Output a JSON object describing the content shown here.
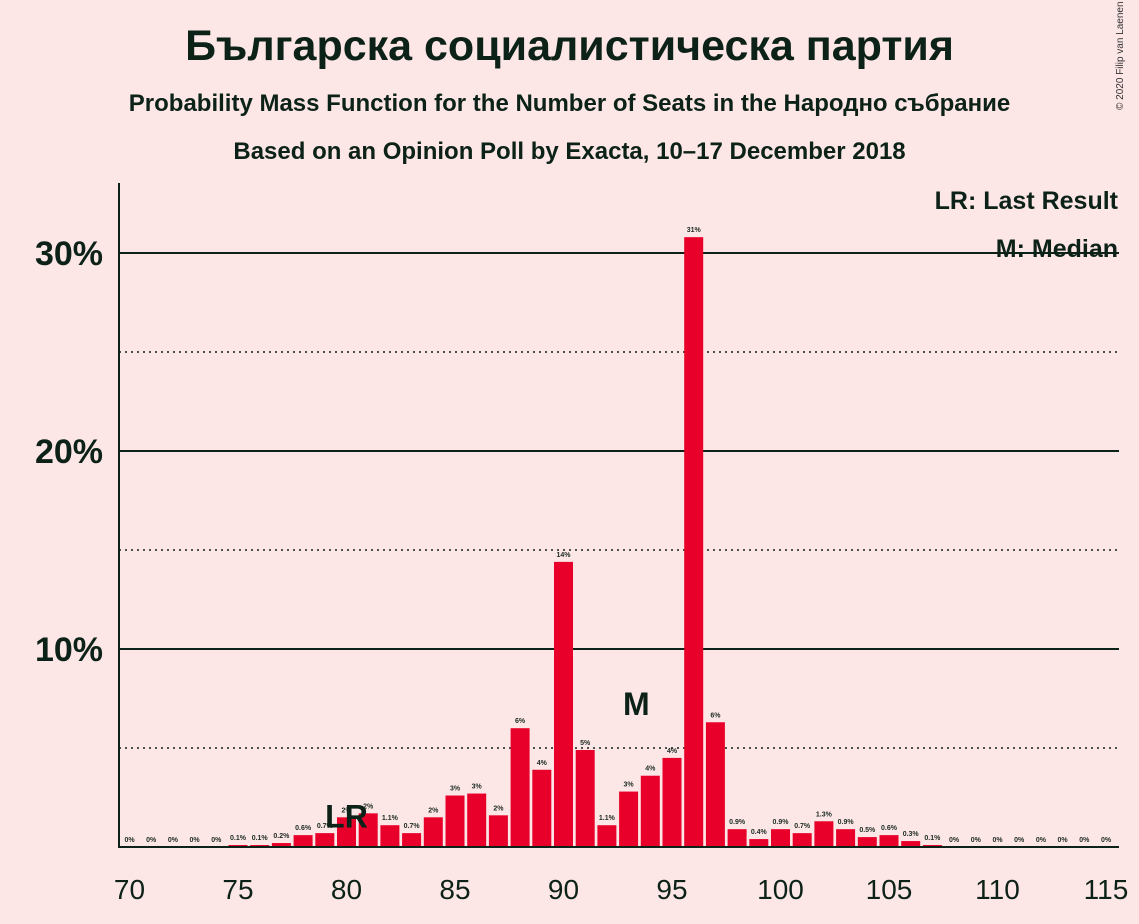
{
  "title": "Българска социалистическа партия",
  "subtitle": "Probability Mass Function for the Number of Seats in the Народно събрание",
  "source_line": "Based on an Opinion Poll by Exacta, 10–17 December 2018",
  "copyright": "© 2020 Filip van Laenen",
  "colors": {
    "bar": "#E8002A",
    "background": "#FDE6E6",
    "text": "#0c2218"
  },
  "chart_data": {
    "type": "bar",
    "xlabel": "",
    "ylabel": "",
    "x": [
      70,
      71,
      72,
      73,
      74,
      75,
      76,
      77,
      78,
      79,
      80,
      81,
      82,
      83,
      84,
      85,
      86,
      87,
      88,
      89,
      90,
      91,
      92,
      93,
      94,
      95,
      96,
      97,
      98,
      99,
      100,
      101,
      102,
      103,
      104,
      105,
      106,
      107,
      108,
      109,
      110,
      111,
      112,
      113,
      114,
      115
    ],
    "values": [
      0,
      0,
      0,
      0,
      0,
      0.1,
      0.1,
      0.2,
      0.6,
      0.7,
      1.5,
      1.7,
      1.1,
      0.7,
      1.5,
      2.6,
      2.7,
      1.6,
      6.0,
      3.9,
      14.4,
      4.9,
      1.1,
      2.8,
      3.6,
      4.5,
      30.8,
      6.3,
      0.9,
      0.4,
      0.9,
      0.7,
      1.3,
      0.9,
      0.5,
      0.6,
      0.3,
      0.1,
      0,
      0,
      0,
      0,
      0,
      0,
      0,
      0
    ],
    "labels": [
      "0%",
      "0%",
      "0%",
      "0%",
      "0%",
      "0.1%",
      "0.1%",
      "0.2%",
      "0.6%",
      "0.7%",
      "2%",
      "2%",
      "1.1%",
      "0.7%",
      "2%",
      "3%",
      "3%",
      "2%",
      "6%",
      "4%",
      "14%",
      "5%",
      "1.1%",
      "3%",
      "4%",
      "4%",
      "31%",
      "6%",
      "0.9%",
      "0.4%",
      "0.9%",
      "0.7%",
      "1.3%",
      "0.9%",
      "0.5%",
      "0.6%",
      "0.3%",
      "0.1%",
      "0%",
      "0%",
      "0%",
      "0%",
      "0%",
      "0%",
      "0%",
      "0%"
    ],
    "ylim": [
      0,
      33.5
    ],
    "yticks": [
      {
        "value": 10,
        "label": "10%"
      },
      {
        "value": 20,
        "label": "20%"
      },
      {
        "value": 30,
        "label": "30%"
      }
    ],
    "minor_gridlines": [
      5,
      15,
      25
    ],
    "xticks": [
      {
        "value": 70,
        "label": "70"
      },
      {
        "value": 75,
        "label": "75"
      },
      {
        "value": 80,
        "label": "80"
      },
      {
        "value": 85,
        "label": "85"
      },
      {
        "value": 90,
        "label": "90"
      },
      {
        "value": 95,
        "label": "95"
      },
      {
        "value": 100,
        "label": "100"
      },
      {
        "value": 105,
        "label": "105"
      },
      {
        "value": 110,
        "label": "110"
      },
      {
        "value": 115,
        "label": "115"
      }
    ],
    "last_result": {
      "seat": 80,
      "label": "LR"
    },
    "median": {
      "seat": 94,
      "label": "M"
    },
    "legend": {
      "position": "top-right",
      "items": [
        "LR: Last Result",
        "M: Median"
      ]
    }
  }
}
